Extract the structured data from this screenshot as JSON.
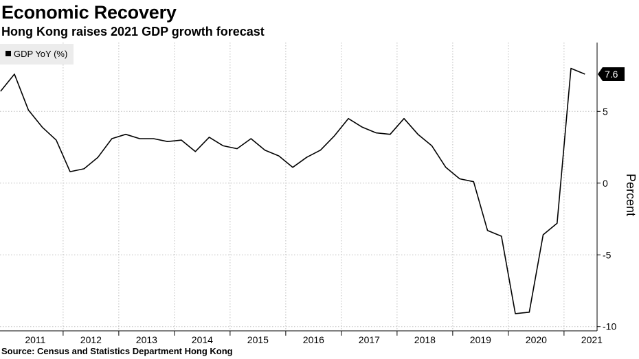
{
  "title": "Economic Recovery",
  "subtitle": "Hong Kong raises 2021 GDP growth forecast",
  "source": "Source: Census and Statistics Department Hong Kong",
  "chart_data": {
    "type": "line",
    "ylabel": "Percent",
    "ylim": [
      -10.3,
      9.8
    ],
    "yticks": [
      -10,
      -5,
      0,
      5
    ],
    "ytick_labels": [
      "-10",
      "-5",
      "0",
      "5"
    ],
    "x_categories": [
      "2011",
      "2012",
      "2013",
      "2014",
      "2015",
      "2016",
      "2017",
      "2018",
      "2019",
      "2020",
      "2021"
    ],
    "grid": true,
    "legend_position": "top-left",
    "last_value_label": "7.6",
    "series": [
      {
        "name": "GDP YoY (%)",
        "color": "#000000",
        "x": [
          "2010Q4",
          "2011Q1",
          "2011Q2",
          "2011Q3",
          "2011Q4",
          "2012Q1",
          "2012Q2",
          "2012Q3",
          "2012Q4",
          "2013Q1",
          "2013Q2",
          "2013Q3",
          "2013Q4",
          "2014Q1",
          "2014Q2",
          "2014Q3",
          "2014Q4",
          "2015Q1",
          "2015Q2",
          "2015Q3",
          "2015Q4",
          "2016Q1",
          "2016Q2",
          "2016Q3",
          "2016Q4",
          "2017Q1",
          "2017Q2",
          "2017Q3",
          "2017Q4",
          "2018Q1",
          "2018Q2",
          "2018Q3",
          "2018Q4",
          "2019Q1",
          "2019Q2",
          "2019Q3",
          "2019Q4",
          "2020Q1",
          "2020Q2",
          "2020Q3",
          "2020Q4",
          "2021Q1",
          "2021Q2"
        ],
        "values": [
          6.4,
          7.6,
          5.1,
          3.9,
          3.0,
          0.8,
          1.0,
          1.8,
          3.1,
          3.4,
          3.1,
          3.1,
          2.9,
          3.0,
          2.2,
          3.2,
          2.6,
          2.4,
          3.1,
          2.3,
          1.9,
          1.1,
          1.8,
          2.3,
          3.3,
          4.5,
          3.9,
          3.5,
          3.4,
          4.5,
          3.4,
          2.6,
          1.1,
          0.3,
          0.1,
          -3.3,
          -3.7,
          -9.1,
          -9.0,
          -3.6,
          -2.8,
          8.0,
          7.6
        ]
      }
    ]
  }
}
